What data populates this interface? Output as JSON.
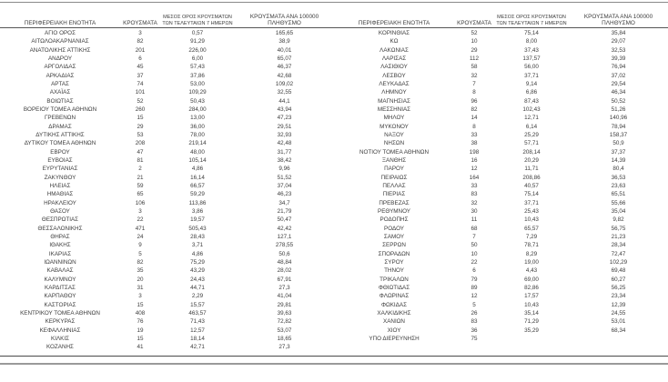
{
  "chart_data": {
    "type": "table",
    "layout": "two side-by-side table halves sharing identical column headers, no vertical gridlines, horizontal rules at top, under header and at bottom",
    "text_color": "#3c3c3c",
    "rule_color": "#555555",
    "columns": [
      "ΠΕΡΙΦΕΡΕΙΑΚΗ ΕΝΟΤΗΤΑ",
      "ΚΡΟΥΣΜΑΤΑ",
      "ΜΕΣΟΣ ΟΡΟΣ ΚΡΟΥΣΜΑΤΩΝ ΤΩΝ ΤΕΛΕΥΤΑΙΩΝ 7 ΗΜΕΡΩΝ",
      "ΚΡΟΥΣΜΑΤΑ ΑΝΑ 100000 ΠΛΗΘΥΣΜΟ"
    ],
    "headers": {
      "region": "ΠΕΡΙΦΕΡΕΙΑΚΗ ΕΝΟΤΗΤΑ",
      "cases": "ΚΡΟΥΣΜΑΤΑ",
      "avg7_line1": "ΜΕΣΟΣ ΟΡΟΣ ΚΡΟΥΣΜΑΤΩΝ",
      "avg7_line2": "ΤΩΝ ΤΕΛΕΥΤΑΙΩΝ 7 ΗΜΕΡΩΝ",
      "per100k_line1": "ΚΡΟΥΣΜΑΤΑ ΑΝΑ 100000",
      "per100k_line2": "ΠΛΗΘΥΣΜΟ"
    },
    "left_rows": [
      [
        "ΑΓΙΟ ΟΡΟΣ",
        "3",
        "0,57",
        "165,65"
      ],
      [
        "ΑΙΤΩΛΟΑΚΑΡΝΑΝΙΑΣ",
        "82",
        "91,29",
        "38,9"
      ],
      [
        "ΑΝΑΤΟΛΙΚΗΣ ΑΤΤΙΚΗΣ",
        "201",
        "226,00",
        "40,01"
      ],
      [
        "ΑΝΔΡΟΥ",
        "6",
        "6,00",
        "65,07"
      ],
      [
        "ΑΡΓΟΛΙΔΑΣ",
        "45",
        "57,43",
        "46,37"
      ],
      [
        "ΑΡΚΑΔΙΑΣ",
        "37",
        "37,86",
        "42,68"
      ],
      [
        "ΑΡΤΑΣ",
        "74",
        "53,00",
        "109,02"
      ],
      [
        "ΑΧΑΪΑΣ",
        "101",
        "109,29",
        "32,55"
      ],
      [
        "ΒΟΙΩΤΙΑΣ",
        "52",
        "50,43",
        "44,1"
      ],
      [
        "ΒΟΡΕΙΟΥ ΤΟΜΕΑ ΑΘΗΝΩΝ",
        "260",
        "284,00",
        "43,94"
      ],
      [
        "ΓΡΕΒΕΝΩΝ",
        "15",
        "13,00",
        "47,23"
      ],
      [
        "ΔΡΑΜΑΣ",
        "29",
        "36,00",
        "29,51"
      ],
      [
        "ΔΥΤΙΚΗΣ ΑΤΤΙΚΗΣ",
        "53",
        "78,00",
        "32,93"
      ],
      [
        "ΔΥΤΙΚΟΥ ΤΟΜΕΑ ΑΘΗΝΩΝ",
        "208",
        "219,14",
        "42,48"
      ],
      [
        "ΕΒΡΟΥ",
        "47",
        "48,00",
        "31,77"
      ],
      [
        "ΕΥΒΟΙΑΣ",
        "81",
        "105,14",
        "38,42"
      ],
      [
        "ΕΥΡΥΤΑΝΙΑΣ",
        "2",
        "4,86",
        "9,96"
      ],
      [
        "ΖΑΚΥΝΘΟΥ",
        "21",
        "16,14",
        "51,52"
      ],
      [
        "ΗΛΕΙΑΣ",
        "59",
        "66,57",
        "37,04"
      ],
      [
        "ΗΜΑΘΙΑΣ",
        "65",
        "59,29",
        "46,23"
      ],
      [
        "ΗΡΑΚΛΕΙΟΥ",
        "106",
        "113,86",
        "34,7"
      ],
      [
        "ΘΑΣΟΥ",
        "3",
        "3,86",
        "21,79"
      ],
      [
        "ΘΕΣΠΡΩΤΙΑΣ",
        "22",
        "19,57",
        "50,47"
      ],
      [
        "ΘΕΣΣΑΛΟΝΙΚΗΣ",
        "471",
        "505,43",
        "42,42"
      ],
      [
        "ΘΗΡΑΣ",
        "24",
        "28,43",
        "127,1"
      ],
      [
        "ΙΘΑΚΗΣ",
        "9",
        "3,71",
        "278,55"
      ],
      [
        "ΙΚΑΡΙΑΣ",
        "5",
        "4,86",
        "50,6"
      ],
      [
        "ΙΩΑΝΝΙΝΩΝ",
        "82",
        "75,29",
        "48,84"
      ],
      [
        "ΚΑΒΑΛΑΣ",
        "35",
        "43,29",
        "28,02"
      ],
      [
        "ΚΑΛΥΜΝΟΥ",
        "20",
        "24,43",
        "67,91"
      ],
      [
        "ΚΑΡΔΙΤΣΑΣ",
        "31",
        "44,71",
        "27,3"
      ],
      [
        "ΚΑΡΠΑΘΟΥ",
        "3",
        "2,29",
        "41,04"
      ],
      [
        "ΚΑΣΤΟΡΙΑΣ",
        "15",
        "15,57",
        "29,81"
      ],
      [
        "ΚΕΝΤΡΙΚΟΥ ΤΟΜΕΑ ΑΘΗΝΩΝ",
        "408",
        "463,57",
        "39,63"
      ],
      [
        "ΚΕΡΚΥΡΑΣ",
        "76",
        "71,43",
        "72,82"
      ],
      [
        "ΚΕΦΑΛΛΗΝΙΑΣ",
        "19",
        "12,57",
        "53,07"
      ],
      [
        "ΚΙΛΚΙΣ",
        "15",
        "18,14",
        "18,65"
      ],
      [
        "ΚΟΖΑΝΗΣ",
        "41",
        "42,71",
        "27,3"
      ]
    ],
    "right_rows": [
      [
        "ΚΟΡΙΝΘΙΑΣ",
        "52",
        "75,14",
        "35,84"
      ],
      [
        "ΚΩ",
        "10",
        "8,00",
        "29,07"
      ],
      [
        "ΛΑΚΩΝΙΑΣ",
        "29",
        "37,43",
        "32,53"
      ],
      [
        "ΛΑΡΙΣΑΣ",
        "112",
        "137,57",
        "39,39"
      ],
      [
        "ΛΑΣΙΘΙΟΥ",
        "58",
        "56,00",
        "76,94"
      ],
      [
        "ΛΕΣΒΟΥ",
        "32",
        "37,71",
        "37,02"
      ],
      [
        "ΛΕΥΚΑΔΑΣ",
        "7",
        "9,14",
        "29,54"
      ],
      [
        "ΛΗΜΝΟΥ",
        "8",
        "6,86",
        "46,34"
      ],
      [
        "ΜΑΓΝΗΣΙΑΣ",
        "96",
        "87,43",
        "50,52"
      ],
      [
        "ΜΕΣΣΗΝΙΑΣ",
        "82",
        "102,43",
        "51,26"
      ],
      [
        "ΜΗΛΟΥ",
        "14",
        "12,71",
        "140,96"
      ],
      [
        "ΜΥΚΟΝΟΥ",
        "8",
        "6,14",
        "78,94"
      ],
      [
        "ΝΑΞΟΥ",
        "33",
        "25,29",
        "158,37"
      ],
      [
        "ΝΗΣΩΝ",
        "38",
        "57,71",
        "50,9"
      ],
      [
        "ΝΟΤΙΟΥ ΤΟΜΕΑ ΑΘΗΝΩΝ",
        "198",
        "208,14",
        "37,37"
      ],
      [
        "ΞΑΝΘΗΣ",
        "16",
        "20,29",
        "14,39"
      ],
      [
        "ΠΑΡΟΥ",
        "12",
        "11,71",
        "80,4"
      ],
      [
        "ΠΕΙΡΑΙΩΣ",
        "164",
        "208,86",
        "36,53"
      ],
      [
        "ΠΕΛΛΑΣ",
        "33",
        "40,57",
        "23,63"
      ],
      [
        "ΠΙΕΡΙΑΣ",
        "83",
        "75,14",
        "65,51"
      ],
      [
        "ΠΡΕΒΕΖΑΣ",
        "32",
        "37,71",
        "55,66"
      ],
      [
        "ΡΕΘΥΜΝΟΥ",
        "30",
        "25,43",
        "35,04"
      ],
      [
        "ΡΟΔΟΠΗΣ",
        "11",
        "10,43",
        "9,82"
      ],
      [
        "ΡΟΔΟΥ",
        "68",
        "65,57",
        "56,75"
      ],
      [
        "ΣΑΜΟΥ",
        "7",
        "7,29",
        "21,23"
      ],
      [
        "ΣΕΡΡΩΝ",
        "50",
        "78,71",
        "28,34"
      ],
      [
        "ΣΠΟΡΑΔΩΝ",
        "10",
        "8,29",
        "72,47"
      ],
      [
        "ΣΥΡΟΥ",
        "22",
        "19,00",
        "102,29"
      ],
      [
        "ΤΗΝΟΥ",
        "6",
        "4,43",
        "69,48"
      ],
      [
        "ΤΡΙΚΑΛΩΝ",
        "79",
        "69,00",
        "60,27"
      ],
      [
        "ΦΘΙΩΤΙΔΑΣ",
        "89",
        "82,86",
        "56,25"
      ],
      [
        "ΦΛΩΡΙΝΑΣ",
        "12",
        "17,57",
        "23,34"
      ],
      [
        "ΦΩΚΙΔΑΣ",
        "5",
        "10,43",
        "12,39"
      ],
      [
        "ΧΑΛΚΙΔΙΚΗΣ",
        "26",
        "35,14",
        "24,55"
      ],
      [
        "ΧΑΝΙΩΝ",
        "83",
        "71,29",
        "53,01"
      ],
      [
        "ΧΙΟΥ",
        "36",
        "35,29",
        "68,34"
      ],
      [
        "ΥΠΟ ΔΙΕΡΕΥΝΗΣΗ",
        "75",
        "",
        ""
      ]
    ]
  }
}
